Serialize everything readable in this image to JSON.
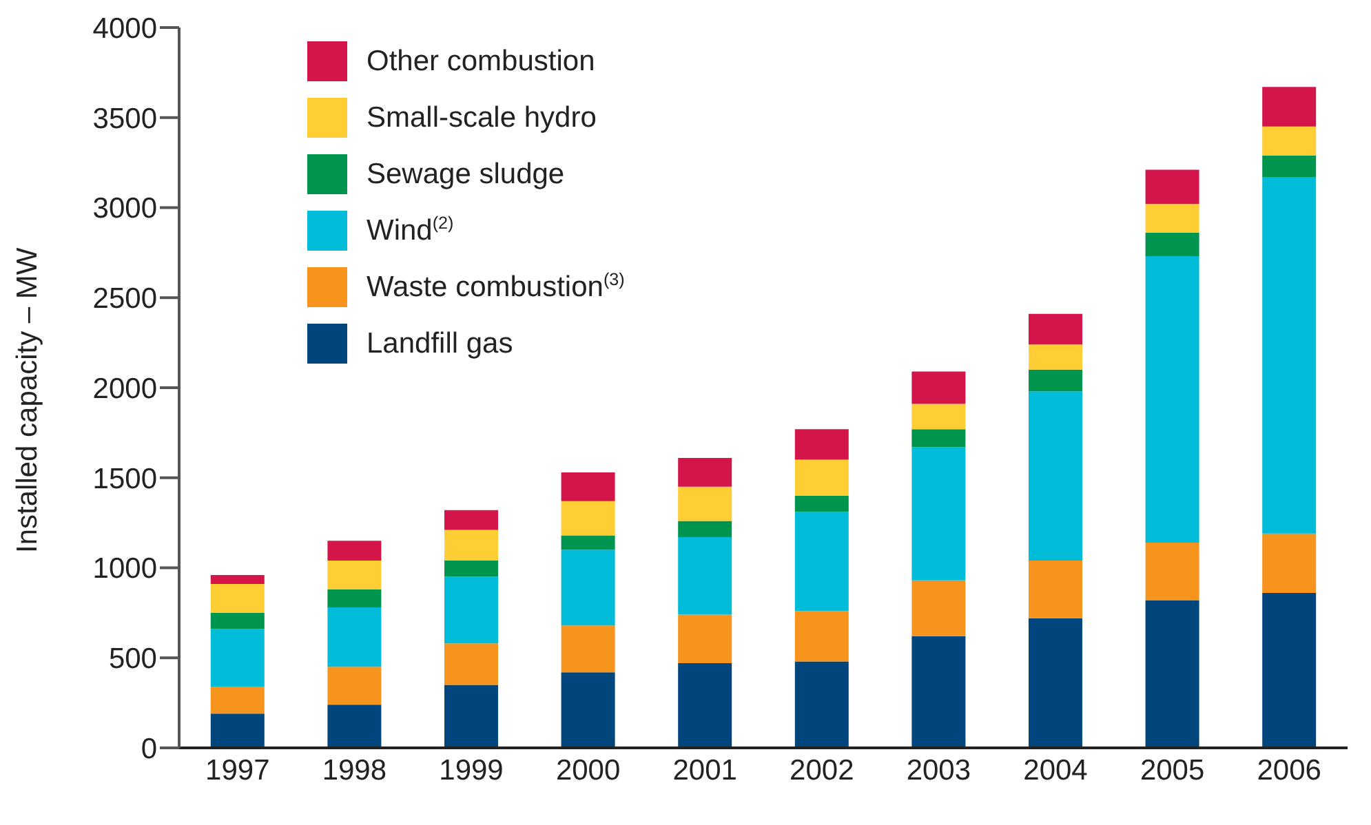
{
  "chart_data": {
    "type": "bar",
    "stacked": true,
    "ylabel": "Installed capacity – MW",
    "categories": [
      "1997",
      "1998",
      "1999",
      "2000",
      "2001",
      "2002",
      "2003",
      "2004",
      "2005",
      "2006"
    ],
    "series": [
      {
        "name": "Landfill gas",
        "color": "#00457c",
        "values": [
          190,
          240,
          350,
          420,
          470,
          480,
          620,
          720,
          820,
          860
        ]
      },
      {
        "name": "Waste combustion$^{(3)}$",
        "color": "#f7941e",
        "values": [
          150,
          210,
          230,
          260,
          270,
          280,
          310,
          320,
          320,
          330
        ]
      },
      {
        "name": "Wind$^{(2)}$",
        "color": "#00bcd9",
        "values": [
          320,
          330,
          370,
          420,
          430,
          550,
          740,
          940,
          1590,
          1980
        ]
      },
      {
        "name": "Sewage sludge",
        "color": "#00954f",
        "values": [
          90,
          100,
          90,
          80,
          90,
          90,
          100,
          120,
          130,
          120
        ]
      },
      {
        "name": "Small-scale hydro",
        "color": "#ffcd34",
        "values": [
          160,
          160,
          170,
          190,
          190,
          200,
          140,
          140,
          160,
          160
        ]
      },
      {
        "name": "Other combustion",
        "color": "#d3154a",
        "values": [
          50,
          110,
          110,
          160,
          160,
          170,
          180,
          170,
          190,
          220
        ]
      }
    ],
    "ylim": [
      0,
      4000
    ],
    "yticks": [
      0,
      500,
      1000,
      1500,
      2000,
      2500,
      3000,
      3500,
      4000
    ],
    "grid": false,
    "legend": "top left"
  }
}
